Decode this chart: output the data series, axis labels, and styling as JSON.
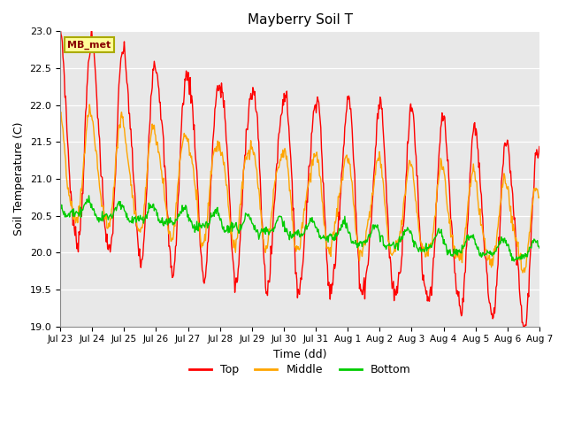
{
  "title": "Mayberry Soil T",
  "ylabel": "Soil Temperature (C)",
  "xlabel": "Time (dd)",
  "ylim": [
    19.0,
    23.0
  ],
  "yticks": [
    19.0,
    19.5,
    20.0,
    20.5,
    21.0,
    21.5,
    22.0,
    22.5,
    23.0
  ],
  "xtick_labels": [
    "Jul 23",
    "Jul 24",
    "Jul 25",
    "Jul 26",
    "Jul 27",
    "Jul 28",
    "Jul 29",
    "Jul 30",
    "Jul 31",
    "Aug 1",
    "Aug 2",
    "Aug 3",
    "Aug 4",
    "Aug 5",
    "Aug 6",
    "Aug 7"
  ],
  "colors": {
    "top": "#FF0000",
    "middle": "#FFA500",
    "bottom": "#00CC00",
    "background": "#E8E8E8",
    "legend_box_face": "#FFFF99",
    "legend_box_edge": "#AAAA00"
  },
  "legend_label": "MB_met",
  "series_labels": [
    "Top",
    "Middle",
    "Bottom"
  ],
  "line_width": 1.0,
  "n_points": 720,
  "end_day": 15.0
}
